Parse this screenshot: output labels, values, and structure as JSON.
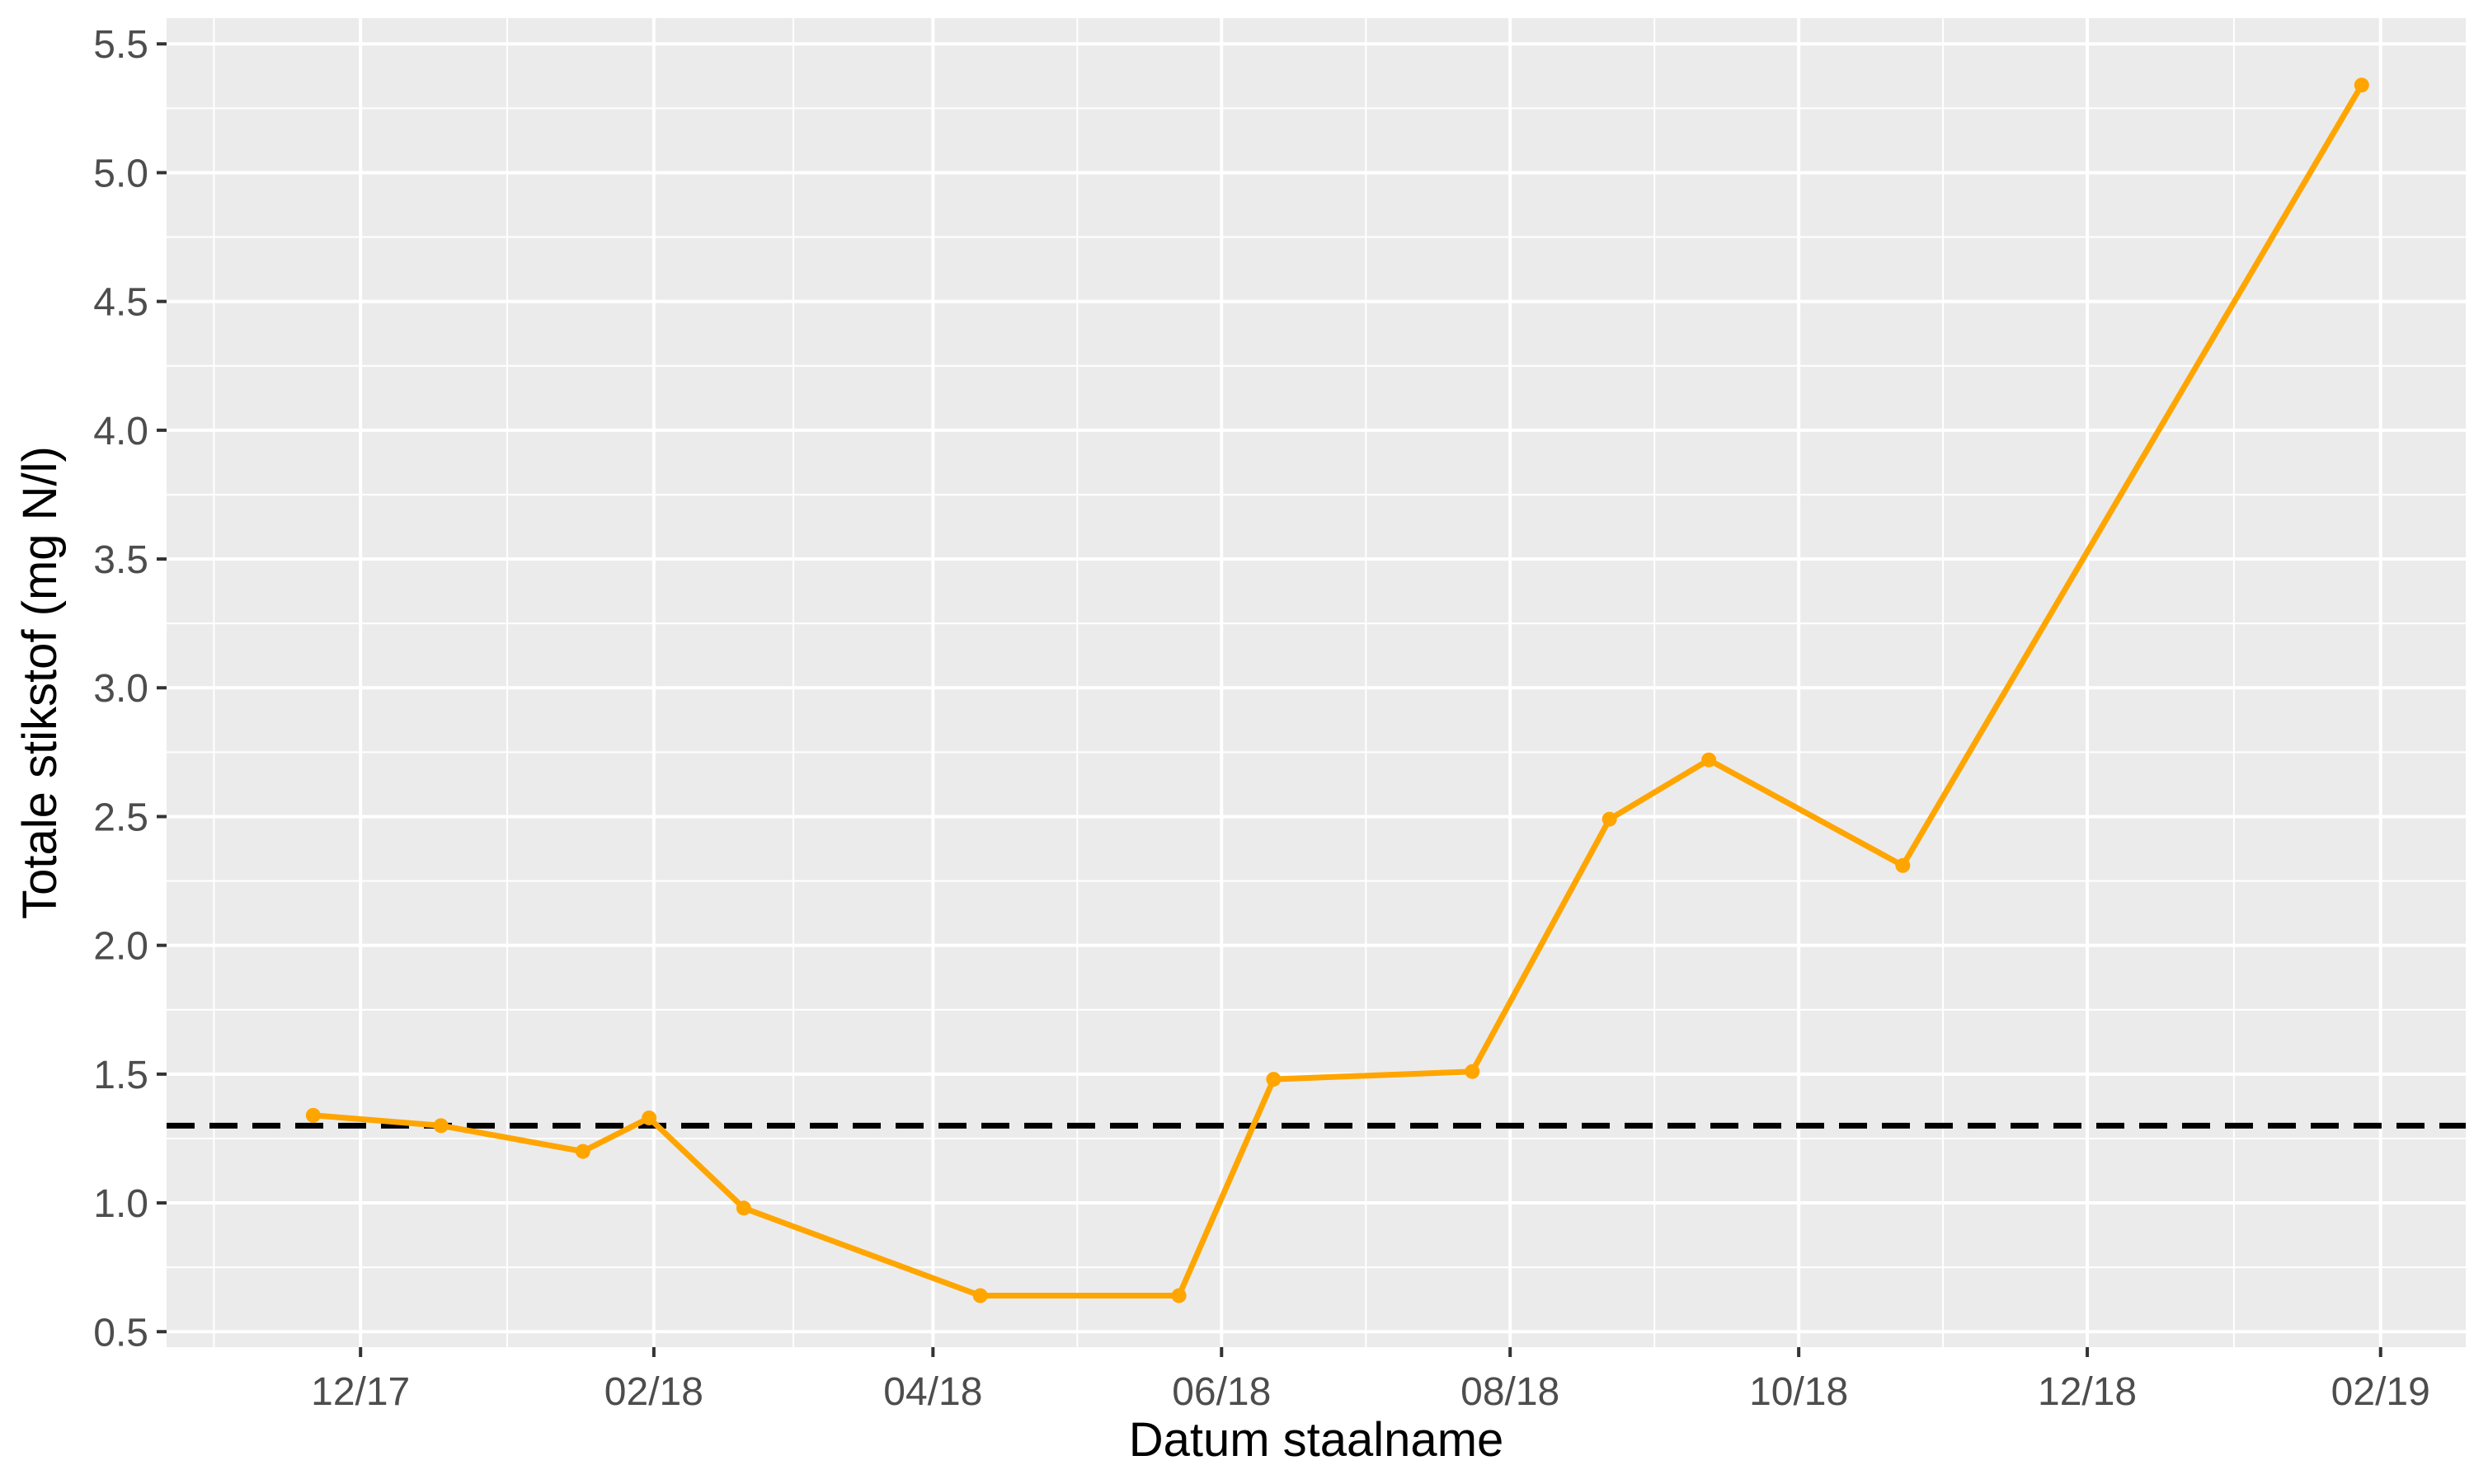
{
  "chart_data": {
    "type": "line",
    "xlabel": "Datum staalname",
    "ylabel": "Totale stikstof (mg N/l)",
    "x_tick_labels": [
      {
        "date": "2017-12-01",
        "label": "12/17"
      },
      {
        "date": "2018-02-01",
        "label": "02/18"
      },
      {
        "date": "2018-04-01",
        "label": "04/18"
      },
      {
        "date": "2018-06-01",
        "label": "06/18"
      },
      {
        "date": "2018-08-01",
        "label": "08/18"
      },
      {
        "date": "2018-10-01",
        "label": "10/18"
      },
      {
        "date": "2018-12-01",
        "label": "12/18"
      },
      {
        "date": "2019-02-01",
        "label": "02/19"
      }
    ],
    "y_ticks": [
      0.5,
      1.0,
      1.5,
      2.0,
      2.5,
      3.0,
      3.5,
      4.0,
      4.5,
      5.0,
      5.5
    ],
    "y_tick_labels": [
      "0.5",
      "1.0",
      "1.5",
      "2.0",
      "2.5",
      "3.0",
      "3.5",
      "4.0",
      "4.5",
      "5.0",
      "5.5"
    ],
    "xlim": [
      "2017-10-21",
      "2019-02-19"
    ],
    "ylim": [
      0.44,
      5.6
    ],
    "grid": true,
    "reference_line": {
      "y": 1.3,
      "style": "dashed",
      "color": "#000000"
    },
    "series": [
      {
        "color": "#FFA500",
        "points": [
          {
            "x": "2017-11-21",
            "y": 1.34
          },
          {
            "x": "2017-12-18",
            "y": 1.3
          },
          {
            "x": "2018-01-17",
            "y": 1.2
          },
          {
            "x": "2018-01-31",
            "y": 1.33
          },
          {
            "x": "2018-02-20",
            "y": 0.98
          },
          {
            "x": "2018-04-11",
            "y": 0.64
          },
          {
            "x": "2018-05-23",
            "y": 0.64
          },
          {
            "x": "2018-06-12",
            "y": 1.48
          },
          {
            "x": "2018-07-24",
            "y": 1.51
          },
          {
            "x": "2018-08-22",
            "y": 2.49
          },
          {
            "x": "2018-09-12",
            "y": 2.72
          },
          {
            "x": "2018-10-23",
            "y": 2.31
          },
          {
            "x": "2019-01-28",
            "y": 5.34
          }
        ]
      }
    ]
  }
}
